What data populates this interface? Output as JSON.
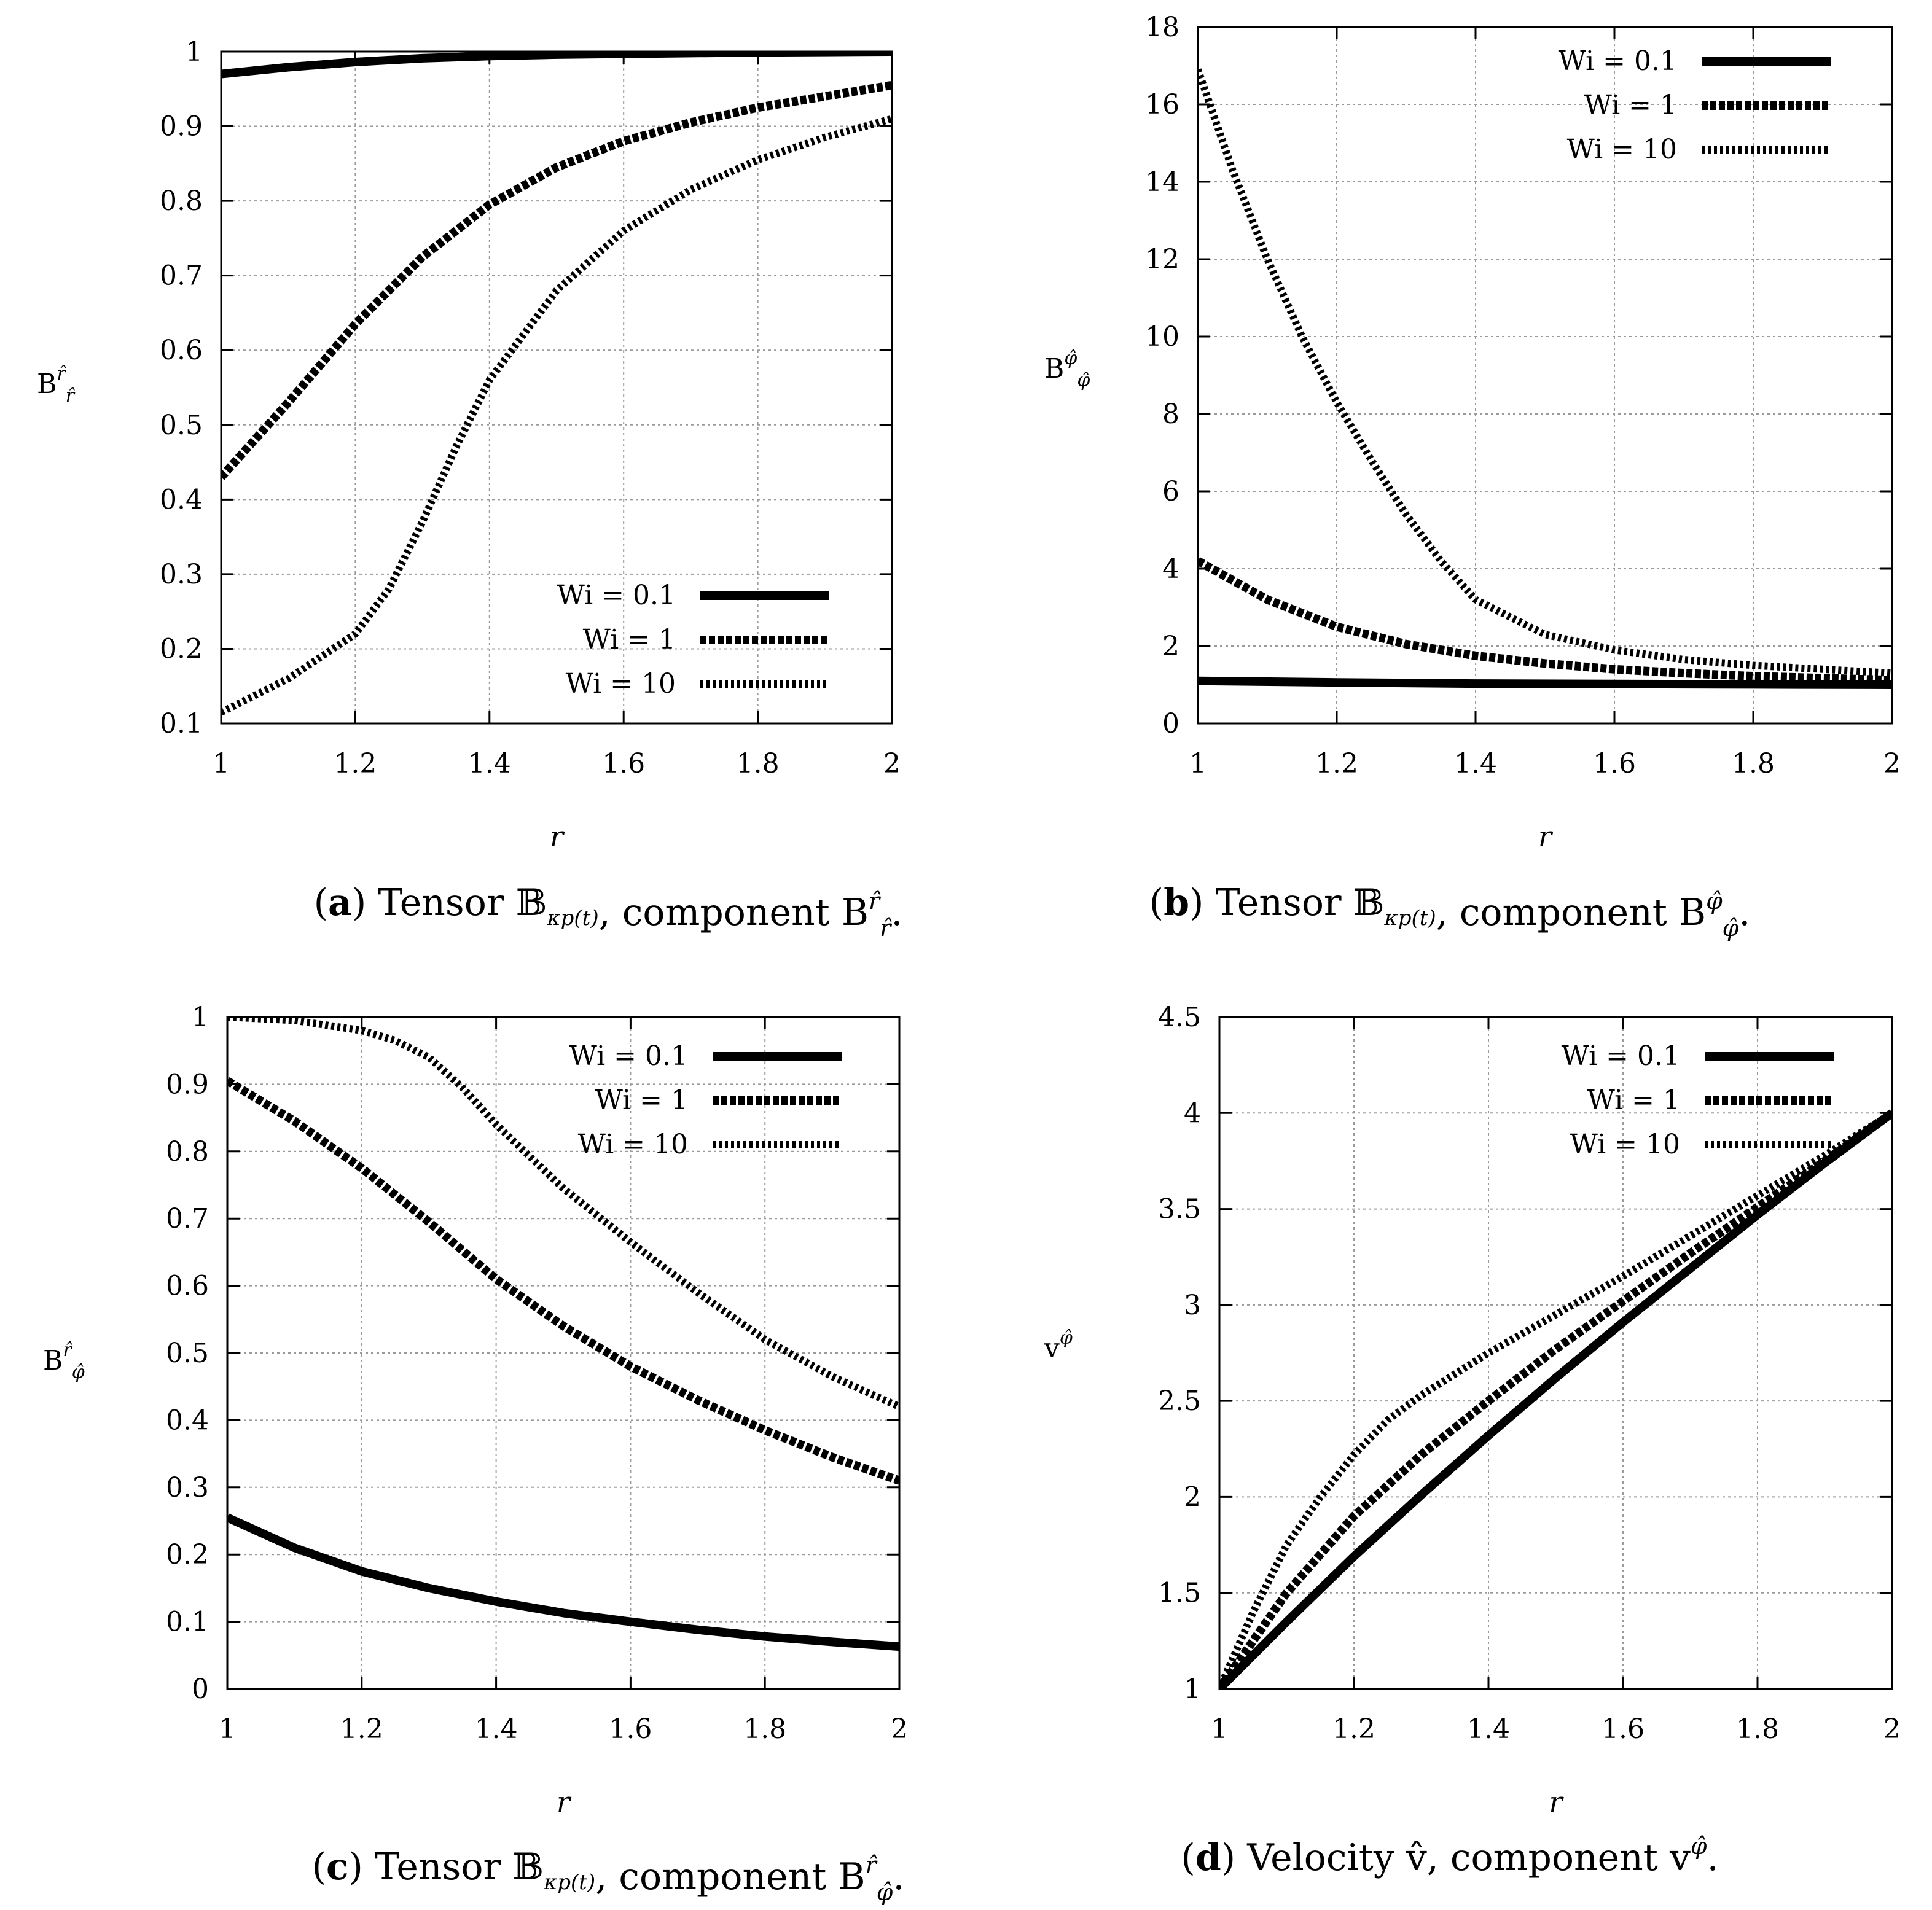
{
  "chart_data": [
    {
      "id": "a",
      "type": "line",
      "caption": {
        "letter": "a",
        "text_before": " Tensor ",
        "math": "𝔹",
        "math_sub": "κp(t)",
        "text_after": ", component B",
        "comp_sup": "r̂",
        "comp_sub": "r̂",
        "end": "."
      },
      "ylabel": {
        "base": "B",
        "sup": "r̂",
        "sub": "r̂"
      },
      "xlabel": "r",
      "xlim": [
        1,
        2
      ],
      "ylim": [
        0.1,
        1
      ],
      "xticks": [
        1,
        1.2,
        1.4,
        1.6,
        1.8,
        2
      ],
      "xtick_labels": [
        "1",
        "1.2",
        "1.4",
        "1.6",
        "1.8",
        "2"
      ],
      "yticks": [
        0.1,
        0.2,
        0.3,
        0.4,
        0.5,
        0.6,
        0.7,
        0.8,
        0.9,
        1
      ],
      "ytick_labels": [
        "0.1",
        "0.2",
        "0.3",
        "0.4",
        "0.5",
        "0.6",
        "0.7",
        "0.8",
        "0.9",
        "1"
      ],
      "grid": true,
      "legend": "bottom-right",
      "series": [
        {
          "name": "Wi = 0.1",
          "style": "solid",
          "x": [
            1,
            1.1,
            1.2,
            1.3,
            1.4,
            1.5,
            1.6,
            1.7,
            1.8,
            1.9,
            2
          ],
          "y": [
            0.97,
            0.979,
            0.986,
            0.991,
            0.994,
            0.996,
            0.997,
            0.998,
            0.999,
            0.9995,
            1.0
          ]
        },
        {
          "name": "Wi = 1",
          "style": "dashed",
          "x": [
            1,
            1.1,
            1.2,
            1.3,
            1.4,
            1.5,
            1.6,
            1.7,
            1.8,
            1.9,
            2
          ],
          "y": [
            0.43,
            0.53,
            0.635,
            0.725,
            0.795,
            0.845,
            0.88,
            0.905,
            0.925,
            0.94,
            0.955
          ]
        },
        {
          "name": "Wi = 10",
          "style": "dotted",
          "x": [
            1,
            1.1,
            1.2,
            1.25,
            1.3,
            1.35,
            1.4,
            1.5,
            1.6,
            1.7,
            1.8,
            1.9,
            2
          ],
          "y": [
            0.115,
            0.16,
            0.22,
            0.28,
            0.37,
            0.47,
            0.56,
            0.68,
            0.76,
            0.815,
            0.855,
            0.885,
            0.91
          ]
        }
      ]
    },
    {
      "id": "b",
      "type": "line",
      "caption": {
        "letter": "b",
        "text_before": " Tensor ",
        "math": "𝔹",
        "math_sub": "κp(t)",
        "text_after": ", component B",
        "comp_sup": "φ̂",
        "comp_sub": "φ̂",
        "end": "."
      },
      "ylabel": {
        "base": "B",
        "sup": "φ̂",
        "sub": "φ̂"
      },
      "xlabel": "r",
      "xlim": [
        1,
        2
      ],
      "ylim": [
        0,
        18
      ],
      "xticks": [
        1,
        1.2,
        1.4,
        1.6,
        1.8,
        2
      ],
      "xtick_labels": [
        "1",
        "1.2",
        "1.4",
        "1.6",
        "1.8",
        "2"
      ],
      "yticks": [
        0,
        2,
        4,
        6,
        8,
        10,
        12,
        14,
        16,
        18
      ],
      "ytick_labels": [
        "0",
        "2",
        "4",
        "6",
        "8",
        "10",
        "12",
        "14",
        "16",
        "18"
      ],
      "grid": true,
      "legend": "top-right",
      "series": [
        {
          "name": "Wi = 0.1",
          "style": "solid",
          "x": [
            1,
            1.2,
            1.4,
            1.6,
            1.8,
            2
          ],
          "y": [
            1.1,
            1.06,
            1.03,
            1.02,
            1.01,
            1.0
          ]
        },
        {
          "name": "Wi = 1",
          "style": "dashed",
          "x": [
            1,
            1.1,
            1.2,
            1.3,
            1.4,
            1.5,
            1.6,
            1.7,
            1.8,
            1.9,
            2
          ],
          "y": [
            4.2,
            3.2,
            2.5,
            2.05,
            1.75,
            1.55,
            1.4,
            1.3,
            1.22,
            1.17,
            1.12
          ]
        },
        {
          "name": "Wi = 10",
          "style": "dotted",
          "x": [
            1,
            1.05,
            1.1,
            1.15,
            1.2,
            1.25,
            1.3,
            1.35,
            1.4,
            1.5,
            1.6,
            1.7,
            1.8,
            1.9,
            2
          ],
          "y": [
            16.9,
            14.3,
            12.0,
            10.0,
            8.3,
            6.8,
            5.4,
            4.2,
            3.2,
            2.3,
            1.9,
            1.65,
            1.5,
            1.4,
            1.3
          ]
        }
      ]
    },
    {
      "id": "c",
      "type": "line",
      "caption": {
        "letter": "c",
        "text_before": " Tensor ",
        "math": "𝔹",
        "math_sub": "κp(t)",
        "text_after": ", component B",
        "comp_sup": "r̂",
        "comp_sub": "φ̂",
        "end": "."
      },
      "ylabel": {
        "base": "B",
        "sup": "r̂",
        "sub": "φ̂"
      },
      "xlabel": "r",
      "xlim": [
        1,
        2
      ],
      "ylim": [
        0,
        1
      ],
      "xticks": [
        1,
        1.2,
        1.4,
        1.6,
        1.8,
        2
      ],
      "xtick_labels": [
        "1",
        "1.2",
        "1.4",
        "1.6",
        "1.8",
        "2"
      ],
      "yticks": [
        0,
        0.1,
        0.2,
        0.3,
        0.4,
        0.5,
        0.6,
        0.7,
        0.8,
        0.9,
        1
      ],
      "ytick_labels": [
        "0",
        "0.1",
        "0.2",
        "0.3",
        "0.4",
        "0.5",
        "0.6",
        "0.7",
        "0.8",
        "0.9",
        "1"
      ],
      "grid": true,
      "legend": "top-right",
      "series": [
        {
          "name": "Wi = 0.1",
          "style": "solid",
          "x": [
            1,
            1.1,
            1.2,
            1.3,
            1.4,
            1.5,
            1.6,
            1.7,
            1.8,
            1.9,
            2
          ],
          "y": [
            0.255,
            0.21,
            0.175,
            0.15,
            0.13,
            0.113,
            0.1,
            0.088,
            0.078,
            0.07,
            0.063
          ]
        },
        {
          "name": "Wi = 1",
          "style": "dashed",
          "x": [
            1,
            1.1,
            1.2,
            1.3,
            1.4,
            1.5,
            1.6,
            1.7,
            1.8,
            1.9,
            2
          ],
          "y": [
            0.905,
            0.845,
            0.775,
            0.695,
            0.61,
            0.54,
            0.48,
            0.43,
            0.385,
            0.345,
            0.31
          ]
        },
        {
          "name": "Wi = 10",
          "style": "dotted",
          "x": [
            1,
            1.1,
            1.2,
            1.25,
            1.3,
            1.35,
            1.4,
            1.5,
            1.6,
            1.7,
            1.8,
            1.9,
            2
          ],
          "y": [
            1.0,
            0.995,
            0.98,
            0.965,
            0.94,
            0.895,
            0.84,
            0.745,
            0.665,
            0.59,
            0.52,
            0.465,
            0.42
          ]
        }
      ]
    },
    {
      "id": "d",
      "type": "line",
      "caption": {
        "letter": "d",
        "text_before": " Velocity ",
        "math": "v̂",
        "math_sub": "",
        "text_after": ", component v",
        "comp_sup": "φ̂",
        "comp_sub": "",
        "end": "."
      },
      "ylabel": {
        "base": "v",
        "sup": "φ̂",
        "sub": ""
      },
      "xlabel": "r",
      "xlim": [
        1,
        2
      ],
      "ylim": [
        1,
        4.5
      ],
      "xticks": [
        1,
        1.2,
        1.4,
        1.6,
        1.8,
        2
      ],
      "xtick_labels": [
        "1",
        "1.2",
        "1.4",
        "1.6",
        "1.8",
        "2"
      ],
      "yticks": [
        1,
        1.5,
        2,
        2.5,
        3,
        3.5,
        4,
        4.5
      ],
      "ytick_labels": [
        "1",
        "1.5",
        "2",
        "2.5",
        "3",
        "3.5",
        "4",
        "4.5"
      ],
      "grid": true,
      "legend": "top-right",
      "series": [
        {
          "name": "Wi = 0.1",
          "style": "solid",
          "x": [
            1,
            1.1,
            1.2,
            1.3,
            1.4,
            1.5,
            1.6,
            1.7,
            1.8,
            1.9,
            2
          ],
          "y": [
            1.0,
            1.35,
            1.69,
            2.01,
            2.32,
            2.62,
            2.91,
            3.19,
            3.47,
            3.74,
            4.0
          ]
        },
        {
          "name": "Wi = 1",
          "style": "dashed",
          "x": [
            1,
            1.1,
            1.2,
            1.3,
            1.4,
            1.5,
            1.6,
            1.7,
            1.8,
            1.9,
            2
          ],
          "y": [
            1.0,
            1.5,
            1.9,
            2.22,
            2.5,
            2.77,
            3.02,
            3.27,
            3.51,
            3.75,
            4.0
          ]
        },
        {
          "name": "Wi = 10",
          "style": "dotted",
          "x": [
            1,
            1.05,
            1.1,
            1.15,
            1.2,
            1.25,
            1.3,
            1.4,
            1.5,
            1.6,
            1.7,
            1.8,
            1.9,
            2
          ],
          "y": [
            1.0,
            1.4,
            1.75,
            2.0,
            2.22,
            2.4,
            2.53,
            2.75,
            2.95,
            3.15,
            3.36,
            3.57,
            3.78,
            4.0
          ]
        }
      ]
    }
  ]
}
